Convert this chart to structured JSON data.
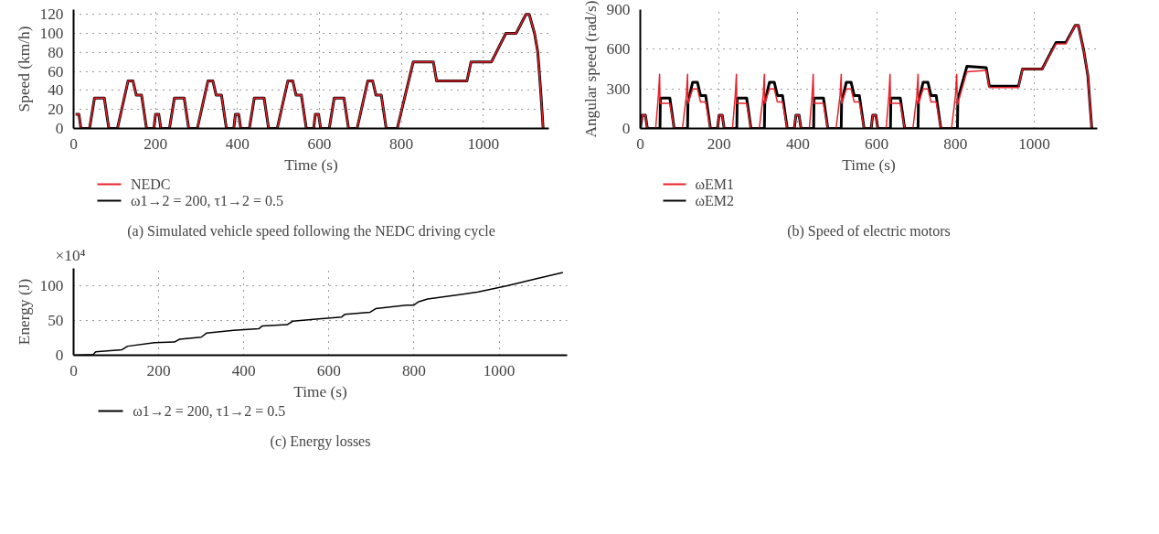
{
  "chart_data": [
    {
      "type": "line",
      "title": "(a) Simulated vehicle speed following the NEDC driving cycle",
      "xlabel": "Time (s)",
      "ylabel": "Speed (km/h)",
      "xlim": [
        0,
        1160
      ],
      "xticks": [
        0,
        200,
        400,
        600,
        800,
        1000
      ],
      "ylim": [
        0,
        125
      ],
      "yticks": [
        0,
        20,
        40,
        60,
        80,
        100,
        120
      ],
      "grid": true,
      "legend": "bottom",
      "line_style": "solid",
      "marker": "none",
      "x": [
        5,
        13,
        18,
        39,
        51,
        75,
        86,
        107,
        133,
        145,
        153,
        166,
        178,
        196,
        200,
        208,
        213,
        234,
        246,
        270,
        281,
        302,
        328,
        340,
        348,
        361,
        373,
        391,
        395,
        403,
        408,
        429,
        441,
        465,
        476,
        497,
        523,
        535,
        543,
        556,
        568,
        586,
        590,
        598,
        603,
        624,
        636,
        660,
        671,
        692,
        718,
        730,
        738,
        751,
        763,
        790,
        829,
        878,
        886,
        960,
        970,
        1020,
        1055,
        1080,
        1104,
        1112,
        1125,
        1133,
        1140,
        1146
      ],
      "series": [
        {
          "name": "NEDC",
          "color": "#e8202a",
          "values": [
            15,
            15,
            0,
            0,
            32,
            32,
            0,
            0,
            50,
            50,
            35,
            35,
            0,
            0,
            15,
            15,
            0,
            0,
            32,
            32,
            0,
            0,
            50,
            50,
            35,
            35,
            0,
            0,
            15,
            15,
            0,
            0,
            32,
            32,
            0,
            0,
            50,
            50,
            35,
            35,
            0,
            0,
            15,
            15,
            0,
            0,
            32,
            32,
            0,
            0,
            50,
            50,
            35,
            35,
            0,
            0,
            70,
            70,
            50,
            50,
            70,
            70,
            100,
            100,
            120,
            120,
            100,
            80,
            40,
            0
          ]
        },
        {
          "name": "ω1→2 = 200, τ1→2 = 0.5",
          "color": "#000000",
          "values": [
            15,
            15,
            0,
            0,
            32,
            32,
            0,
            0,
            50,
            50,
            35,
            35,
            0,
            0,
            15,
            15,
            0,
            0,
            32,
            32,
            0,
            0,
            50,
            50,
            35,
            35,
            0,
            0,
            15,
            15,
            0,
            0,
            32,
            32,
            0,
            0,
            50,
            50,
            35,
            35,
            0,
            0,
            15,
            15,
            0,
            0,
            32,
            32,
            0,
            0,
            50,
            50,
            35,
            35,
            0,
            0,
            70,
            70,
            50,
            50,
            70,
            70,
            100,
            100,
            120,
            120,
            100,
            80,
            40,
            0
          ]
        }
      ]
    },
    {
      "type": "line",
      "title": "(b) Speed of electric motors",
      "xlabel": "Time (s)",
      "ylabel": "Angular speed (rad/s)",
      "xlim": [
        0,
        1160
      ],
      "xticks": [
        0,
        200,
        400,
        600,
        800,
        1000
      ],
      "ylim": [
        0,
        900
      ],
      "yticks": [
        0,
        300,
        600,
        900
      ],
      "grid": true,
      "legend": "bottom",
      "line_style": "solid",
      "marker": "none",
      "series": [
        {
          "name": "ωEM1",
          "color": "#e8202a",
          "x": [
            0,
            5,
            13,
            18,
            39,
            46,
            49,
            50,
            75,
            86,
            107,
            117,
            120,
            121,
            133,
            145,
            153,
            166,
            178,
            196,
            200,
            208,
            213,
            234,
            241,
            244,
            245,
            270,
            281,
            302,
            312,
            315,
            316,
            328,
            340,
            348,
            361,
            373,
            391,
            395,
            403,
            408,
            429,
            436,
            439,
            440,
            465,
            476,
            497,
            507,
            510,
            511,
            523,
            535,
            543,
            556,
            568,
            586,
            590,
            598,
            603,
            624,
            631,
            634,
            635,
            660,
            671,
            692,
            702,
            705,
            706,
            718,
            730,
            738,
            751,
            763,
            790,
            800,
            803,
            805,
            829,
            878,
            886,
            960,
            970,
            1020,
            1055,
            1080,
            1104,
            1112,
            1125,
            1136,
            1146
          ],
          "values": [
            0,
            100,
            100,
            0,
            0,
            250,
            410,
            190,
            190,
            0,
            0,
            250,
            410,
            190,
            300,
            300,
            200,
            200,
            0,
            0,
            100,
            100,
            0,
            0,
            250,
            410,
            190,
            190,
            0,
            0,
            250,
            410,
            190,
            300,
            300,
            200,
            200,
            0,
            0,
            100,
            100,
            0,
            0,
            250,
            410,
            190,
            190,
            0,
            0,
            250,
            410,
            190,
            300,
            300,
            200,
            200,
            0,
            0,
            100,
            100,
            0,
            0,
            250,
            410,
            190,
            190,
            0,
            0,
            250,
            410,
            190,
            300,
            300,
            200,
            200,
            0,
            0,
            250,
            410,
            180,
            430,
            440,
            310,
            310,
            450,
            450,
            640,
            640,
            780,
            780,
            600,
            400,
            0
          ]
        },
        {
          "name": "ωEM2",
          "color": "#000000",
          "x": [
            0,
            5,
            13,
            18,
            50,
            51,
            75,
            86,
            120,
            121,
            133,
            145,
            153,
            166,
            178,
            196,
            200,
            208,
            213,
            245,
            246,
            270,
            281,
            315,
            316,
            328,
            340,
            348,
            361,
            373,
            391,
            395,
            403,
            408,
            440,
            441,
            465,
            476,
            510,
            511,
            523,
            535,
            543,
            556,
            568,
            586,
            590,
            598,
            603,
            635,
            636,
            660,
            671,
            705,
            706,
            718,
            730,
            738,
            751,
            763,
            805,
            806,
            829,
            878,
            886,
            960,
            970,
            1020,
            1055,
            1080,
            1104,
            1112,
            1125,
            1136,
            1146
          ],
          "values": [
            0,
            100,
            100,
            0,
            0,
            230,
            230,
            0,
            0,
            200,
            350,
            350,
            250,
            250,
            0,
            0,
            100,
            100,
            0,
            0,
            230,
            230,
            0,
            0,
            200,
            350,
            350,
            250,
            250,
            0,
            0,
            100,
            100,
            0,
            0,
            230,
            230,
            0,
            0,
            200,
            350,
            350,
            250,
            250,
            0,
            0,
            100,
            100,
            0,
            0,
            230,
            230,
            0,
            0,
            200,
            350,
            350,
            250,
            250,
            0,
            0,
            220,
            470,
            460,
            320,
            320,
            450,
            450,
            650,
            650,
            780,
            780,
            600,
            400,
            0
          ]
        }
      ]
    },
    {
      "type": "line",
      "title": "(c) Energy losses",
      "xlabel": "Time (s)",
      "ylabel": "Energy (J)",
      "xlim": [
        0,
        1160
      ],
      "xticks": [
        0,
        200,
        400,
        600,
        800,
        1000
      ],
      "ylim": [
        0,
        125
      ],
      "yticks": [
        0,
        50,
        100
      ],
      "grid": true,
      "legend": "bottom",
      "line_style": "solid",
      "marker": "none",
      "annotations": [
        "×10⁴"
      ],
      "x": [
        0,
        46,
        52,
        114,
        127,
        190,
        237,
        249,
        300,
        313,
        376,
        435,
        443,
        502,
        515,
        570,
        630,
        638,
        697,
        710,
        782,
        799,
        811,
        832,
        951,
        1019,
        1086,
        1150
      ],
      "series": [
        {
          "name": "ω1→2 = 200, τ1→2 = 0.5",
          "color": "#000000",
          "values": [
            0,
            1,
            5,
            8,
            13,
            18,
            19,
            23,
            26,
            32,
            36,
            38,
            42,
            44,
            49,
            52,
            55,
            59,
            62,
            67,
            72,
            72,
            77,
            81,
            91,
            100,
            110,
            119
          ]
        }
      ]
    }
  ]
}
